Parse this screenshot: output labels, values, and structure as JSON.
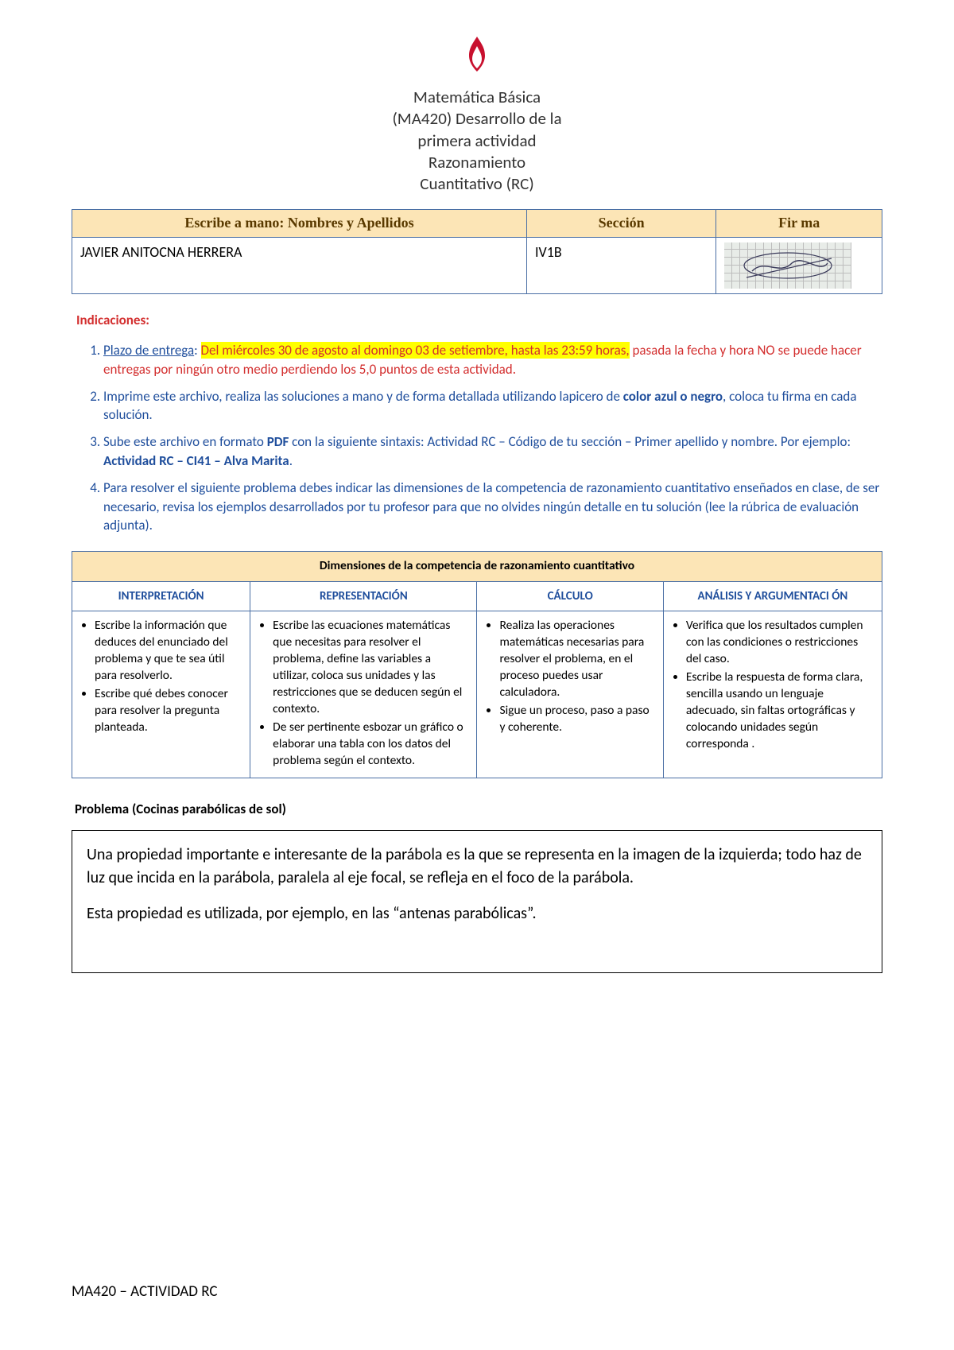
{
  "header": {
    "logo_color": "#c8102e",
    "title_lines": [
      "Matemática Básica",
      "(MA420) Desarrollo de la",
      "primera actividad",
      "Razonamiento",
      "Cuantitativo (RC)"
    ]
  },
  "id_table": {
    "headers": {
      "name": "Escribe a mano: Nombres y Apellidos",
      "section": "Sección",
      "signature": "Fir ma"
    },
    "row": {
      "name": "JAVIER ANITOCNA HERRERA",
      "section": "IV1B"
    },
    "col_widths": [
      "48%",
      "20%",
      "16%"
    ]
  },
  "indications_heading": "Indicaciones:",
  "instructions": [
    {
      "parts": [
        {
          "text": "Plazo de entrega",
          "cls": "u"
        },
        {
          "text": ": "
        },
        {
          "text": "Del miércoles 30 de agosto al domingo 03 de setiembre, hasta las 23:59 horas,",
          "cls": "hl-yellow red-text"
        },
        {
          "text": " pasada la fecha y hora NO se puede hacer entregas por ningún otro medio perdiendo los 5,0 puntos de esta actividad.",
          "cls": "red-text"
        }
      ]
    },
    {
      "parts": [
        {
          "text": "Imprime este archivo, realiza las soluciones a mano y de forma detallada utilizando lapicero de "
        },
        {
          "text": "color azul o negro",
          "cls": "b"
        },
        {
          "text": ", coloca tu firma en cada solución."
        }
      ]
    },
    {
      "parts": [
        {
          "text": "Sube este archivo en formato "
        },
        {
          "text": "PDF",
          "cls": "b"
        },
        {
          "text": " con la siguiente sintaxis: Actividad RC – Código de tu sección – Primer apellido y nombre. Por ejemplo: "
        },
        {
          "text": "Actividad RC – CI41 – Alva Marita",
          "cls": "b"
        },
        {
          "text": "."
        }
      ]
    },
    {
      "parts": [
        {
          "text": "Para resolver el siguiente problema debes indicar las dimensiones de la competencia de razonamiento cuantitativo enseñados en clase, de ser necesario, revisa los ejemplos desarrollados por tu profesor para que no olvides ningún detalle en tu solución (lee la rúbrica de evaluación adjunta)."
        }
      ]
    }
  ],
  "competency": {
    "banner": "Dimensiones de la competencia de razonamiento cuantitativo",
    "columns": [
      "INTERPRETACIÓN",
      "REPRESENTACIÓN",
      "CÁLCULO",
      "ANÁLISIS Y ARGUMENTACI ÓN"
    ],
    "cells": [
      [
        "Escribe la información que deduces del enunciado del problema y que te sea útil para resolverlo.",
        "Escribe qué debes conocer para resolver la pregunta planteada."
      ],
      [
        "Escribe las ecuaciones matemáticas que necesitas para resolver el problema, define las variables a utilizar, coloca sus unidades y las restricciones que se deducen según el contexto.",
        "De ser pertinente esbozar un gráfico o elaborar una tabla con los datos del problema según el contexto."
      ],
      [
        "Realiza las operaciones matemáticas necesarias para resolver el problema, en el proceso puedes usar calculadora.",
        "Sigue un proceso, paso a paso y coherente."
      ],
      [
        "Verifica que los resultados cumplen con las condiciones o restricciones del caso.",
        "Escribe la respuesta de forma clara, sencilla usando un lenguaje adecuado, sin faltas ortográficas y colocando unidades según corresponda ."
      ]
    ],
    "col_widths": [
      "22%",
      "28%",
      "23%",
      "27%"
    ]
  },
  "problem": {
    "title": "Problema (Cocinas parabólicas de sol)",
    "paragraphs": [
      "Una propiedad importante e interesante de la parábola es la que se representa en la imagen de la izquierda; todo haz de luz que incida en la parábola, paralela al eje focal, se refleja en el foco de la parábola.",
      "Esta propiedad es utilizada, por ejemplo, en las “antenas parabólicas”."
    ]
  },
  "footer": "MA420 – ACTIVIDAD RC",
  "colors": {
    "border": "#4a6fa5",
    "header_bg": "#fce5b6",
    "link_blue": "#1f4e9c",
    "danger_red": "#d32f2f",
    "highlight": "#ffff00"
  }
}
